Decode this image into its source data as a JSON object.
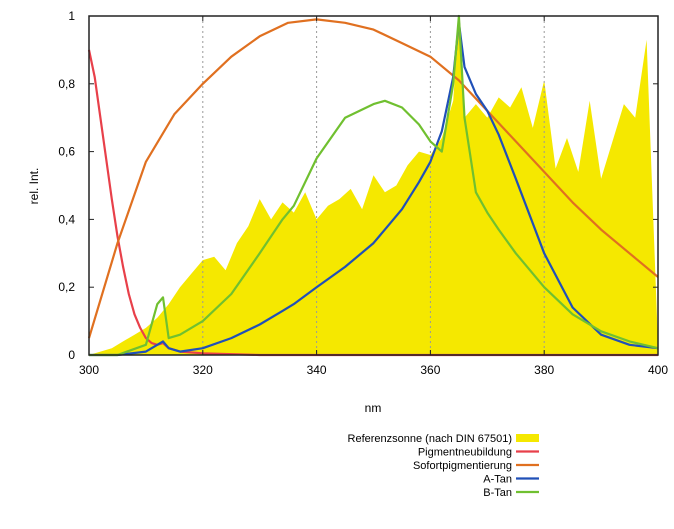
{
  "chart_data": {
    "type": "line",
    "xlabel": "nm",
    "ylabel": "rel. Int.",
    "xlim": [
      300,
      400
    ],
    "ylim": [
      0,
      1
    ],
    "xticks": [
      300,
      320,
      340,
      360,
      380,
      400
    ],
    "yticks": [
      0,
      0.2,
      0.4,
      0.6,
      0.8,
      1
    ],
    "ytick_labels": [
      "0",
      "0,2",
      "0,4",
      "0,6",
      "0,8",
      "1"
    ],
    "vertical_gridlines_at": [
      320,
      340,
      360,
      380
    ],
    "legend_position": "bottom",
    "series": [
      {
        "name": "Referenzsonne (nach DIN 67501)",
        "kind": "area",
        "color": "#f5e800",
        "x": [
          300,
          302,
          304,
          306,
          308,
          310,
          312,
          314,
          316,
          318,
          320,
          322,
          324,
          326,
          328,
          330,
          332,
          334,
          336,
          338,
          340,
          342,
          344,
          346,
          348,
          350,
          352,
          354,
          356,
          358,
          360,
          362,
          364,
          365,
          366,
          368,
          370,
          372,
          374,
          376,
          378,
          380,
          382,
          384,
          386,
          388,
          390,
          392,
          394,
          396,
          398,
          400
        ],
        "y": [
          0.0,
          0.01,
          0.02,
          0.04,
          0.06,
          0.08,
          0.11,
          0.15,
          0.2,
          0.24,
          0.28,
          0.29,
          0.25,
          0.33,
          0.38,
          0.46,
          0.4,
          0.45,
          0.42,
          0.48,
          0.4,
          0.44,
          0.46,
          0.49,
          0.43,
          0.53,
          0.48,
          0.5,
          0.56,
          0.6,
          0.59,
          0.64,
          0.75,
          1.0,
          0.7,
          0.74,
          0.7,
          0.76,
          0.73,
          0.79,
          0.67,
          0.81,
          0.55,
          0.64,
          0.54,
          0.75,
          0.52,
          0.63,
          0.74,
          0.7,
          0.93,
          0.03
        ]
      },
      {
        "name": "Pigmentneubildung",
        "color": "#e8404a",
        "x": [
          300,
          301,
          302,
          303,
          304,
          305,
          306,
          307,
          308,
          309,
          310,
          311,
          312,
          313,
          314,
          316,
          320,
          330,
          340,
          400
        ],
        "y": [
          0.9,
          0.82,
          0.7,
          0.58,
          0.46,
          0.35,
          0.26,
          0.18,
          0.12,
          0.08,
          0.05,
          0.035,
          0.03,
          0.035,
          0.02,
          0.01,
          0.005,
          0.0,
          0.0,
          0.0
        ]
      },
      {
        "name": "Sofortpigmentierung",
        "color": "#e07020",
        "x": [
          300,
          305,
          310,
          315,
          320,
          325,
          330,
          335,
          340,
          345,
          350,
          355,
          360,
          365,
          370,
          375,
          380,
          385,
          390,
          395,
          400
        ],
        "y": [
          0.05,
          0.33,
          0.57,
          0.71,
          0.8,
          0.88,
          0.94,
          0.98,
          0.99,
          0.98,
          0.96,
          0.92,
          0.88,
          0.81,
          0.72,
          0.63,
          0.54,
          0.45,
          0.37,
          0.3,
          0.23
        ]
      },
      {
        "name": "A-Tan",
        "color": "#2050b8",
        "x": [
          300,
          305,
          310,
          312,
          313,
          314,
          316,
          320,
          325,
          330,
          334,
          336,
          340,
          345,
          350,
          355,
          358,
          360,
          362,
          364,
          365,
          366,
          368,
          370,
          372,
          375,
          380,
          385,
          390,
          395,
          400
        ],
        "y": [
          0.0,
          0.0,
          0.01,
          0.03,
          0.04,
          0.02,
          0.01,
          0.02,
          0.05,
          0.09,
          0.13,
          0.15,
          0.2,
          0.26,
          0.33,
          0.43,
          0.51,
          0.57,
          0.66,
          0.82,
          0.98,
          0.85,
          0.77,
          0.72,
          0.65,
          0.52,
          0.3,
          0.14,
          0.06,
          0.03,
          0.02
        ]
      },
      {
        "name": "B-Tan",
        "color": "#70c030",
        "x": [
          300,
          305,
          310,
          312,
          313,
          314,
          316,
          320,
          325,
          330,
          334,
          336,
          340,
          345,
          350,
          352,
          355,
          358,
          360,
          362,
          364,
          365,
          366,
          368,
          370,
          372,
          375,
          380,
          385,
          390,
          395,
          400
        ],
        "y": [
          0.0,
          0.0,
          0.03,
          0.15,
          0.17,
          0.05,
          0.06,
          0.1,
          0.18,
          0.3,
          0.4,
          0.44,
          0.58,
          0.7,
          0.74,
          0.75,
          0.73,
          0.68,
          0.63,
          0.6,
          0.8,
          1.0,
          0.7,
          0.48,
          0.42,
          0.37,
          0.3,
          0.2,
          0.12,
          0.07,
          0.04,
          0.02
        ]
      }
    ]
  }
}
